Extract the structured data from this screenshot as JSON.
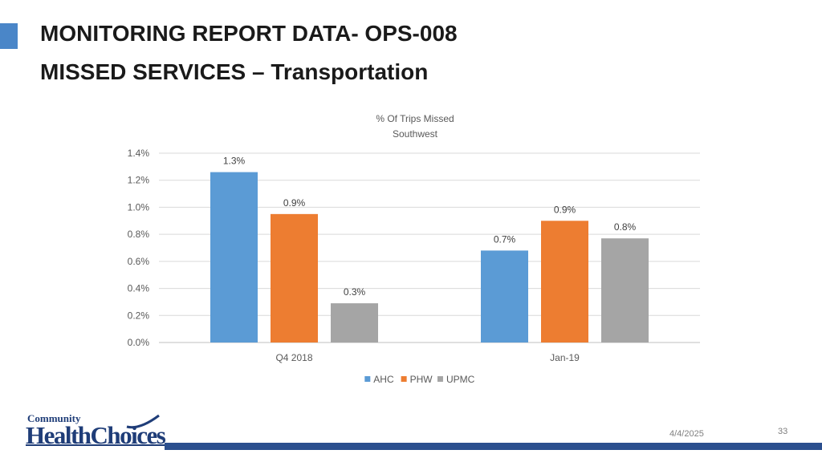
{
  "slide": {
    "title_line1": "MONITORING REPORT DATA- OPS-008",
    "title_line2": "MISSED SERVICES – Transportation",
    "date": "4/4/2025",
    "page_number": "33",
    "logo_top": "Community",
    "logo_main": "HealthChoices",
    "colors": {
      "accent": "#4a86c8",
      "footer_bar": "#2b4f8e",
      "logo": "#1f3d78"
    }
  },
  "chart_data": {
    "type": "bar",
    "title": "% Of  Trips Missed",
    "subtitle": "Southwest",
    "categories": [
      "Q4 2018",
      "Jan-19"
    ],
    "series": [
      {
        "name": "AHC",
        "color": "#5b9bd5",
        "values": [
          1.26,
          0.68
        ],
        "labels": [
          "1.3%",
          "0.7%"
        ]
      },
      {
        "name": "PHW",
        "color": "#ed7d31",
        "values": [
          0.95,
          0.9
        ],
        "labels": [
          "0.9%",
          "0.9%"
        ]
      },
      {
        "name": "UPMC",
        "color": "#a5a5a5",
        "values": [
          0.29,
          0.77
        ],
        "labels": [
          "0.3%",
          "0.8%"
        ]
      }
    ],
    "ylim": [
      0,
      1.4
    ],
    "yticks": [
      0,
      0.2,
      0.4,
      0.6,
      0.8,
      1.0,
      1.2,
      1.4
    ],
    "ytick_labels": [
      "0.0%",
      "0.2%",
      "0.4%",
      "0.6%",
      "0.8%",
      "1.0%",
      "1.2%",
      "1.4%"
    ],
    "grid": true,
    "legend_position": "bottom"
  }
}
